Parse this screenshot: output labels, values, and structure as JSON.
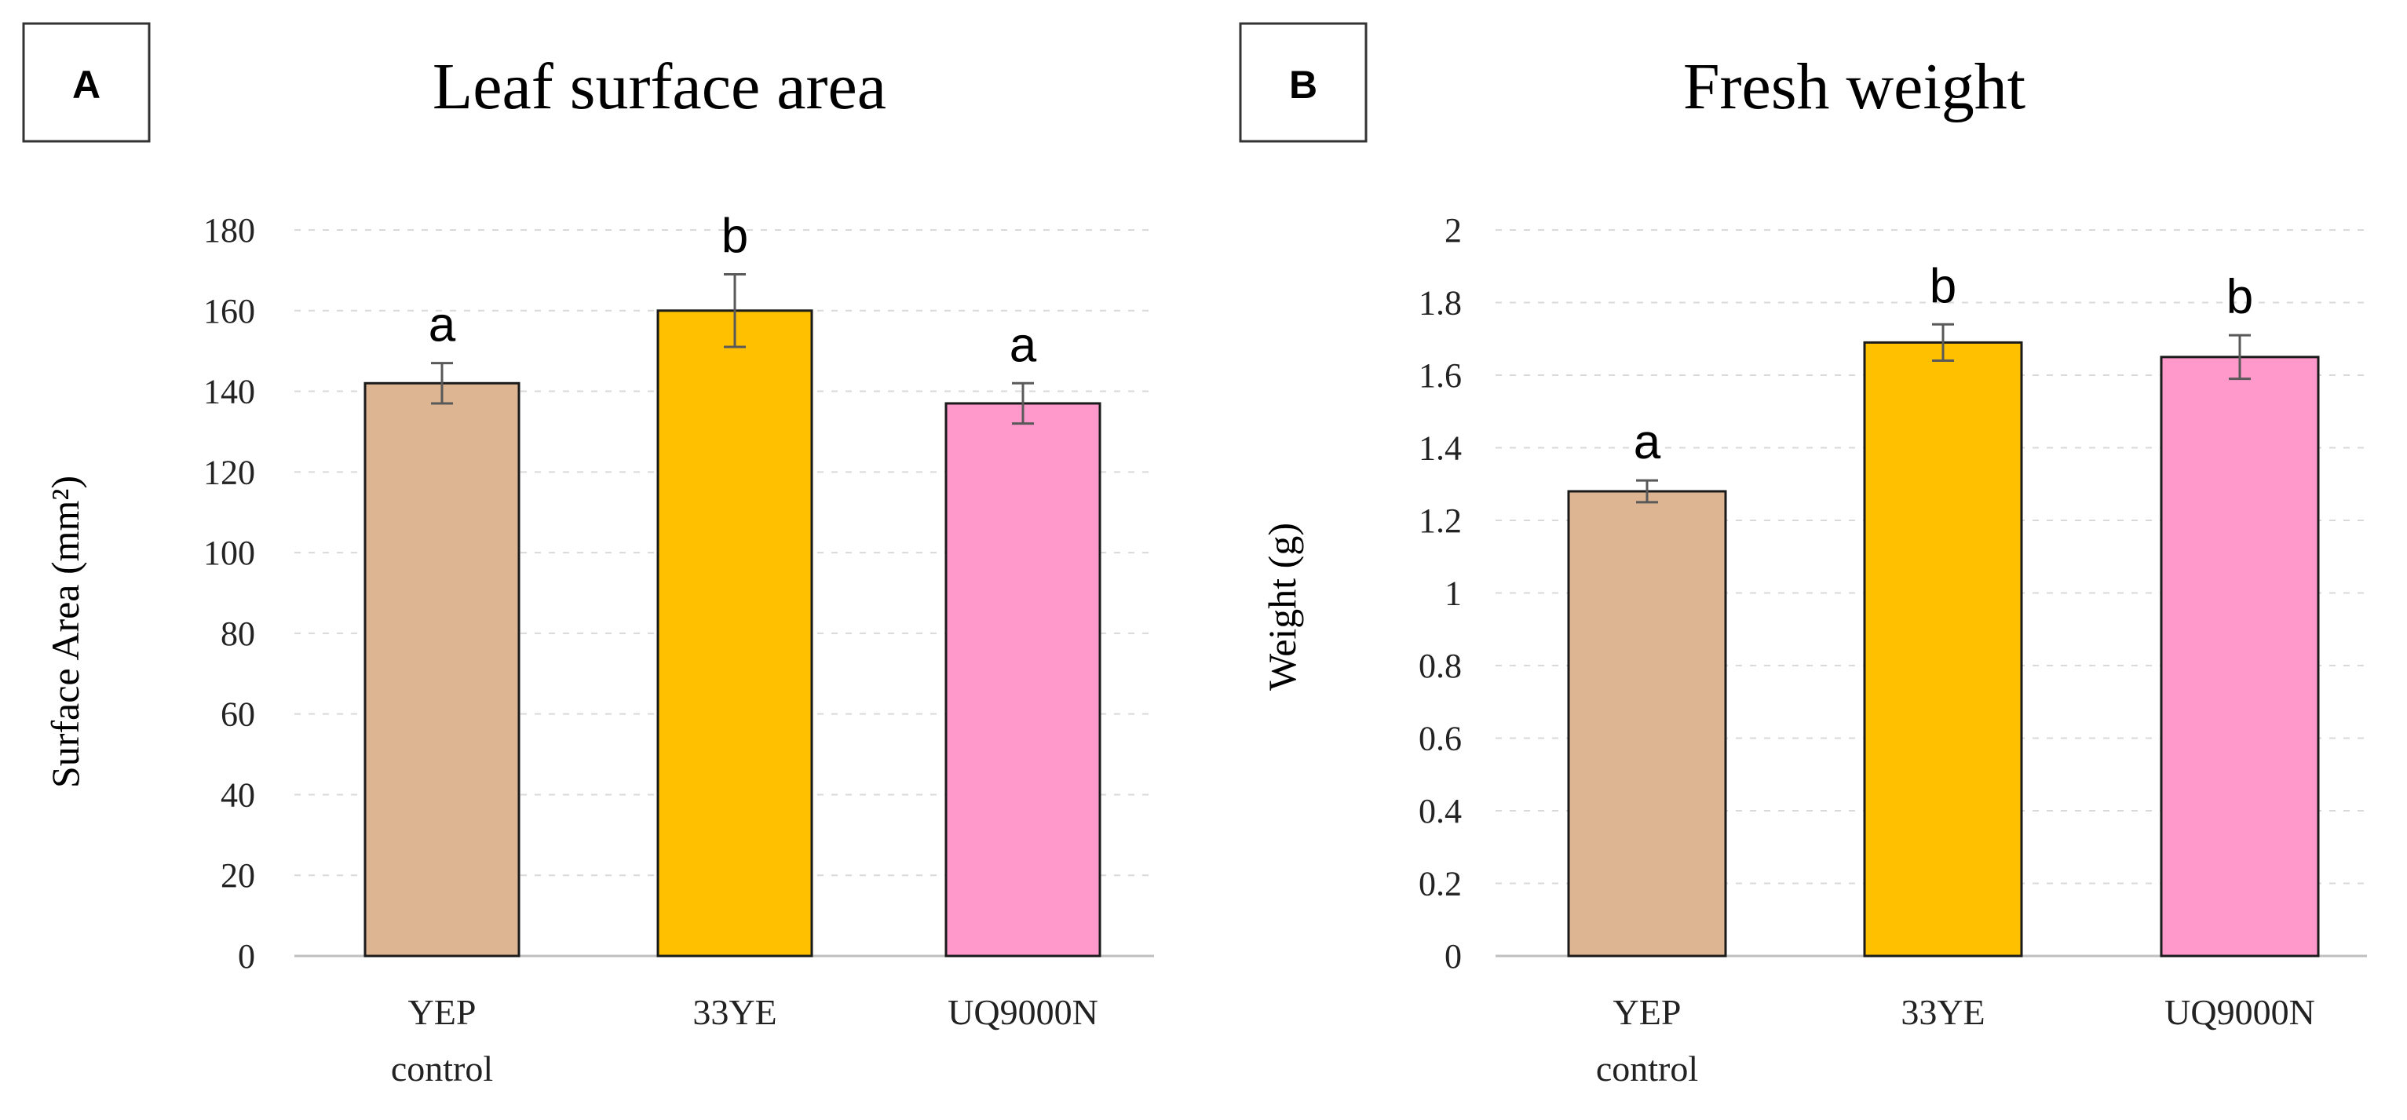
{
  "chart_data": [
    {
      "panel_label": "A",
      "type": "bar",
      "title": "Leaf surface area",
      "ylabel": "Surface Area (mm²)",
      "xlabel": "",
      "categories": [
        [
          "YEP",
          "control"
        ],
        [
          "33YE"
        ],
        [
          "UQ9000N"
        ]
      ],
      "values": [
        142,
        160,
        137
      ],
      "errors": [
        5,
        9,
        5
      ],
      "significance": [
        "a",
        "b",
        "a"
      ],
      "colors": [
        "#DDB592",
        "#FFC000",
        "#FF99CC"
      ],
      "ylim": [
        0,
        180
      ],
      "yticks": [
        0,
        20,
        40,
        60,
        80,
        100,
        120,
        140,
        160,
        180
      ],
      "ytick_labels": [
        "0",
        "20",
        "40",
        "60",
        "80",
        "100",
        "120",
        "140",
        "160",
        "180"
      ],
      "grid": true
    },
    {
      "panel_label": "B",
      "type": "bar",
      "title": "Fresh weight",
      "ylabel": "Weight (g)",
      "xlabel": "",
      "categories": [
        [
          "YEP",
          "control"
        ],
        [
          "33YE"
        ],
        [
          "UQ9000N"
        ]
      ],
      "values": [
        1.28,
        1.69,
        1.65
      ],
      "errors": [
        0.03,
        0.05,
        0.06
      ],
      "significance": [
        "a",
        "b",
        "b"
      ],
      "colors": [
        "#DDB592",
        "#FFC000",
        "#FF99CC"
      ],
      "ylim": [
        0,
        2
      ],
      "yticks": [
        0,
        0.2,
        0.4,
        0.6,
        0.8,
        1,
        1.2,
        1.4,
        1.6,
        1.8,
        2
      ],
      "ytick_labels": [
        "0",
        "0.2",
        "0.4",
        "0.6",
        "0.8",
        "1",
        "1.2",
        "1.4",
        "1.6",
        "1.8",
        "2"
      ],
      "grid": true
    }
  ]
}
